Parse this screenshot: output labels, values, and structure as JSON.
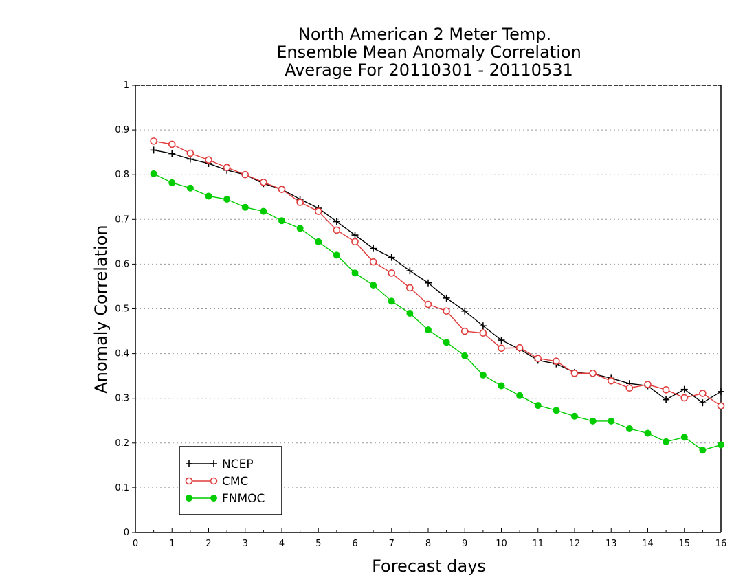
{
  "chart_data": {
    "type": "line",
    "title_lines": [
      "North American 2 Meter Temp.",
      "Ensemble Mean Anomaly Correlation",
      "Average For 20110301 - 20110531"
    ],
    "xlabel": "Forecast days",
    "ylabel": "Anomaly Correlation",
    "xlim": [
      0,
      16
    ],
    "ylim": [
      0,
      1
    ],
    "x_ticks": [
      0,
      1,
      2,
      3,
      4,
      5,
      6,
      7,
      8,
      9,
      10,
      11,
      12,
      13,
      14,
      15,
      16
    ],
    "y_ticks": [
      0,
      0.1,
      0.2,
      0.3,
      0.4,
      0.5,
      0.6,
      0.7,
      0.8,
      0.9,
      1
    ],
    "y_tick_labels": [
      "0",
      "0.1",
      "0.2",
      "0.3",
      "0.4",
      "0.5",
      "0.6",
      "0.7",
      "0.8",
      "0.9",
      "1"
    ],
    "grid": "horizontal-dotted",
    "legend_position": "bottom-left",
    "x": [
      0.5,
      1,
      1.5,
      2,
      2.5,
      3,
      3.5,
      4,
      4.5,
      5,
      5.5,
      6,
      6.5,
      7,
      7.5,
      8,
      8.5,
      9,
      9.5,
      10,
      10.5,
      11,
      11.5,
      12,
      12.5,
      13,
      13.5,
      14,
      14.5,
      15,
      15.5,
      16
    ],
    "series": [
      {
        "name": "NCEP",
        "color": "#000000",
        "marker": "plus",
        "values": [
          0.855,
          0.847,
          0.835,
          0.825,
          0.81,
          0.8,
          0.78,
          0.767,
          0.745,
          0.725,
          0.695,
          0.665,
          0.635,
          0.615,
          0.585,
          0.558,
          0.524,
          0.495,
          0.462,
          0.43,
          0.41,
          0.385,
          0.377,
          0.358,
          0.355,
          0.345,
          0.333,
          0.328,
          0.297,
          0.32,
          0.29,
          0.315
        ]
      },
      {
        "name": "CMC",
        "color": "#e03c3c",
        "marker": "open-circle",
        "values": [
          0.875,
          0.868,
          0.848,
          0.833,
          0.816,
          0.8,
          0.783,
          0.767,
          0.738,
          0.718,
          0.676,
          0.65,
          0.605,
          0.58,
          0.547,
          0.51,
          0.495,
          0.45,
          0.446,
          0.412,
          0.413,
          0.389,
          0.383,
          0.356,
          0.356,
          0.339,
          0.323,
          0.331,
          0.319,
          0.301,
          0.311,
          0.283
        ]
      },
      {
        "name": "FNMOC",
        "color": "#00cc00",
        "marker": "filled-circle",
        "values": [
          0.802,
          0.782,
          0.77,
          0.752,
          0.745,
          0.727,
          0.718,
          0.697,
          0.68,
          0.65,
          0.62,
          0.58,
          0.553,
          0.517,
          0.49,
          0.453,
          0.425,
          0.395,
          0.352,
          0.328,
          0.306,
          0.284,
          0.273,
          0.26,
          0.249,
          0.249,
          0.232,
          0.222,
          0.203,
          0.213,
          0.184,
          0.196
        ]
      }
    ]
  }
}
